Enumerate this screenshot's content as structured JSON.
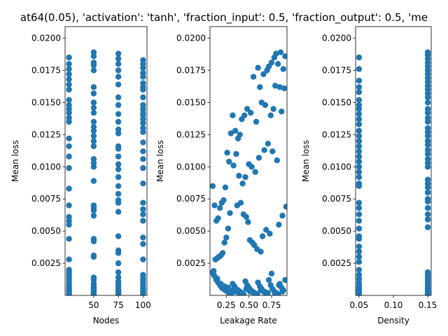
{
  "figure": {
    "title": "at64(0.05), 'activation': 'tanh', 'fraction_input': 0.5, 'fraction_output': 0.5, 'me",
    "marker_color": "#1f77b4"
  },
  "chart_data": [
    {
      "type": "scatter",
      "xlabel": "Nodes",
      "ylabel": "Mean loss",
      "xlim": [
        21,
        104
      ],
      "ylim": [
        0.0,
        0.0209
      ],
      "xticks": [
        50,
        75,
        100
      ],
      "xticklabels": [
        "50",
        "75",
        "100"
      ],
      "yticks": [
        0.0025,
        0.005,
        0.0075,
        0.01,
        0.0125,
        0.015,
        0.0175,
        0.02
      ],
      "yticklabels": [
        "0.0025",
        "0.0050",
        "0.0075",
        "0.0100",
        "0.0125",
        "0.0150",
        "0.0175",
        "0.0200"
      ],
      "series": [
        {
          "x": [
            25,
            25,
            25,
            25,
            25,
            25,
            25,
            25,
            25,
            25,
            25,
            25,
            25,
            25,
            25,
            25,
            25,
            25,
            25,
            25,
            25,
            25,
            25,
            25,
            25,
            25,
            25,
            25,
            25,
            25,
            25,
            25,
            25,
            25,
            25,
            25,
            25,
            25
          ],
          "y": [
            0.0185,
            0.018,
            0.0176,
            0.0172,
            0.0168,
            0.0164,
            0.016,
            0.0152,
            0.0148,
            0.0145,
            0.0142,
            0.0138,
            0.0135,
            0.0122,
            0.0116,
            0.0108,
            0.0099,
            0.0083,
            0.007,
            0.0061,
            0.0058,
            0.0055,
            0.0044,
            0.0028,
            0.002,
            0.0018,
            0.0016,
            0.0014,
            0.0012,
            0.001,
            0.0008,
            0.0007,
            0.0006,
            0.0005,
            0.0004,
            0.0003,
            0.0002,
            0.0001
          ]
        },
        {
          "x": [
            50,
            50,
            50,
            50,
            50,
            50,
            50,
            50,
            50,
            50,
            50,
            50,
            50,
            50,
            50,
            50,
            50,
            50,
            50,
            50,
            50,
            50,
            50,
            50,
            50,
            50,
            50,
            50,
            50,
            50,
            50,
            50,
            50,
            50,
            50,
            50,
            50,
            50,
            50,
            50
          ],
          "y": [
            0.0189,
            0.0186,
            0.0181,
            0.0179,
            0.0175,
            0.0162,
            0.0157,
            0.015,
            0.0146,
            0.0142,
            0.0135,
            0.0131,
            0.0128,
            0.0124,
            0.012,
            0.0116,
            0.0106,
            0.0103,
            0.01,
            0.0089,
            0.007,
            0.0068,
            0.0066,
            0.0062,
            0.0044,
            0.0042,
            0.0031,
            0.003,
            0.0014,
            0.0012,
            0.0009,
            0.0007,
            0.0006,
            0.0005,
            0.0004,
            0.0003,
            0.0002,
            0.0001,
            0.0001,
            0.0005
          ]
        },
        {
          "x": [
            75,
            75,
            75,
            75,
            75,
            75,
            75,
            75,
            75,
            75,
            75,
            75,
            75,
            75,
            75,
            75,
            75,
            75,
            75,
            75,
            75,
            75,
            75,
            75,
            75,
            75,
            75,
            75,
            75,
            75,
            75,
            75,
            75,
            75,
            75,
            75,
            75,
            75
          ],
          "y": [
            0.0188,
            0.0184,
            0.018,
            0.0175,
            0.017,
            0.0164,
            0.0154,
            0.0148,
            0.0141,
            0.0135,
            0.0129,
            0.0126,
            0.0116,
            0.0114,
            0.0108,
            0.0102,
            0.0098,
            0.0092,
            0.0085,
            0.0079,
            0.0074,
            0.0072,
            0.0065,
            0.0046,
            0.0035,
            0.0033,
            0.0025,
            0.0018,
            0.0014,
            0.0011,
            0.0009,
            0.0007,
            0.0005,
            0.0004,
            0.0003,
            0.0002,
            0.0001,
            0.0001
          ]
        },
        {
          "x": [
            100,
            100,
            100,
            100,
            100,
            100,
            100,
            100,
            100,
            100,
            100,
            100,
            100,
            100,
            100,
            100,
            100,
            100,
            100,
            100,
            100,
            100,
            100,
            100,
            100,
            100,
            100,
            100,
            100,
            100,
            100,
            100,
            100,
            100,
            100,
            100,
            100,
            100,
            100,
            100
          ],
          "y": [
            0.0183,
            0.018,
            0.0177,
            0.0173,
            0.017,
            0.0165,
            0.0162,
            0.016,
            0.0154,
            0.0148,
            0.0145,
            0.0142,
            0.014,
            0.0137,
            0.0134,
            0.013,
            0.0127,
            0.0119,
            0.0112,
            0.0106,
            0.0099,
            0.0087,
            0.0072,
            0.0067,
            0.0063,
            0.0058,
            0.0045,
            0.004,
            0.0028,
            0.0016,
            0.0014,
            0.0012,
            0.001,
            0.0008,
            0.0006,
            0.0005,
            0.0004,
            0.0003,
            0.0002,
            0.0001
          ]
        }
      ]
    },
    {
      "type": "scatter",
      "xlabel": "Leakage Rate",
      "ylabel": "Mean loss",
      "xlim": [
        0.07,
        0.92
      ],
      "ylim": [
        0.0,
        0.0209
      ],
      "xticks": [
        0.25,
        0.5,
        0.75
      ],
      "xticklabels": [
        "0.25",
        "0.50",
        "0.75"
      ],
      "yticks": [
        0.0025,
        0.005,
        0.0075,
        0.01,
        0.0125,
        0.015,
        0.0175,
        0.02
      ],
      "yticklabels": [
        "0.0025",
        "0.0050",
        "0.0075",
        "0.0100",
        "0.0125",
        "0.0150",
        "0.0175",
        "0.0200"
      ],
      "series": [
        {
          "x": [
            0.85,
            0.8,
            0.78,
            0.9,
            0.75,
            0.82,
            0.88,
            0.72,
            0.7,
            0.66,
            0.6,
            0.55,
            0.62,
            0.79,
            0.84,
            0.86,
            0.77,
            0.74,
            0.68,
            0.64,
            0.58,
            0.52,
            0.48,
            0.45,
            0.42,
            0.4,
            0.38,
            0.35,
            0.32,
            0.3,
            0.28,
            0.26,
            0.24,
            0.22,
            0.2,
            0.18,
            0.16,
            0.14,
            0.12,
            0.1,
            0.5,
            0.53,
            0.57,
            0.61,
            0.67,
            0.71,
            0.76,
            0.81,
            0.89,
            0.46,
            0.43,
            0.39,
            0.36,
            0.33,
            0.29,
            0.27,
            0.25,
            0.23,
            0.21,
            0.19,
            0.17,
            0.15,
            0.13,
            0.11,
            0.37,
            0.41,
            0.44,
            0.47,
            0.49,
            0.51,
            0.54,
            0.56,
            0.59,
            0.63,
            0.65,
            0.69,
            0.73,
            0.83,
            0.87,
            0.91
          ],
          "y": [
            0.0189,
            0.0188,
            0.0185,
            0.0186,
            0.0181,
            0.018,
            0.0176,
            0.0178,
            0.0175,
            0.0172,
            0.0177,
            0.017,
            0.0162,
            0.0163,
            0.0162,
            0.0143,
            0.0145,
            0.014,
            0.0148,
            0.015,
            0.0135,
            0.0142,
            0.0145,
            0.014,
            0.0137,
            0.0125,
            0.0122,
            0.0128,
            0.014,
            0.0126,
            0.0104,
            0.0111,
            0.0084,
            0.0074,
            0.0072,
            0.0068,
            0.006,
            0.0058,
            0.007,
            0.0085,
            0.0102,
            0.01,
            0.0096,
            0.0107,
            0.0113,
            0.0118,
            0.0112,
            0.0105,
            0.0161,
            0.0092,
            0.0087,
            0.0093,
            0.011,
            0.0101,
            0.0064,
            0.0052,
            0.0045,
            0.0041,
            0.0033,
            0.0031,
            0.003,
            0.0029,
            0.0028,
            0.0019,
            0.007,
            0.0072,
            0.0063,
            0.0061,
            0.0057,
            0.0043,
            0.0041,
            0.0039,
            0.0036,
            0.0034,
            0.0046,
            0.0051,
            0.0048,
            0.0055,
            0.0062,
            0.0069
          ]
        },
        {
          "x": [
            0.1,
            0.12,
            0.14,
            0.16,
            0.18,
            0.2,
            0.22,
            0.24,
            0.26,
            0.28,
            0.3,
            0.32,
            0.34,
            0.36,
            0.38,
            0.4,
            0.42,
            0.44,
            0.46,
            0.48,
            0.5,
            0.52,
            0.54,
            0.56,
            0.58,
            0.6,
            0.62,
            0.64,
            0.66,
            0.68,
            0.7,
            0.72,
            0.74,
            0.76,
            0.78,
            0.8,
            0.82,
            0.84,
            0.86,
            0.88,
            0.9,
            0.11,
            0.15,
            0.19,
            0.23,
            0.27,
            0.31,
            0.35,
            0.39,
            0.43,
            0.47,
            0.51,
            0.55,
            0.59,
            0.63,
            0.67,
            0.71,
            0.75,
            0.79,
            0.83,
            0.87
          ],
          "y": [
            0.0018,
            0.0015,
            0.0012,
            0.001,
            0.0008,
            0.0006,
            0.0005,
            0.0004,
            0.0003,
            0.0002,
            0.0001,
            0.0009,
            0.0007,
            0.0005,
            0.0004,
            0.0003,
            0.0002,
            0.0001,
            0.0011,
            0.0008,
            0.0006,
            0.0004,
            0.0003,
            0.0002,
            0.0001,
            0.001,
            0.0007,
            0.0005,
            0.0003,
            0.0002,
            0.0001,
            0.0012,
            0.0008,
            0.0005,
            0.0003,
            0.0002,
            0.0001,
            0.0009,
            0.0006,
            0.0004,
            0.0012,
            0.0016,
            0.0013,
            0.0009,
            0.0007,
            0.0006,
            0.0004,
            0.0003,
            0.0002,
            0.0001,
            0.0005,
            0.0003,
            0.0002,
            0.0001,
            0.0004,
            0.0003,
            0.0002,
            0.0017,
            0.0001,
            0.0008,
            0.0003
          ]
        }
      ]
    },
    {
      "type": "scatter",
      "xlabel": "Density",
      "ylabel": "Mean loss",
      "xlim": [
        0.045,
        0.155
      ],
      "ylim": [
        0.0,
        0.0209
      ],
      "xticks": [
        0.05,
        0.1,
        0.15
      ],
      "xticklabels": [
        "0.05",
        "0.10",
        "0.15"
      ],
      "yticks": [
        0.0025,
        0.005,
        0.0075,
        0.01,
        0.0125,
        0.015,
        0.0175,
        0.02
      ],
      "yticklabels": [
        "0.0025",
        "0.0050",
        "0.0075",
        "0.0100",
        "0.0125",
        "0.0150",
        "0.0175",
        "0.0200"
      ],
      "series": [
        {
          "x": [
            0.05,
            0.05,
            0.05,
            0.05,
            0.05,
            0.05,
            0.05,
            0.05,
            0.05,
            0.05,
            0.05,
            0.05,
            0.05,
            0.05,
            0.05,
            0.05,
            0.05,
            0.05,
            0.05,
            0.05,
            0.05,
            0.05,
            0.05,
            0.05,
            0.05,
            0.05,
            0.05,
            0.05,
            0.05,
            0.05,
            0.05,
            0.05,
            0.05,
            0.05,
            0.05,
            0.05,
            0.05,
            0.05,
            0.05,
            0.05,
            0.05,
            0.05,
            0.05,
            0.05,
            0.05
          ],
          "y": [
            0.0185,
            0.0176,
            0.0167,
            0.0162,
            0.0158,
            0.0152,
            0.0148,
            0.0145,
            0.0141,
            0.0137,
            0.0133,
            0.0128,
            0.0124,
            0.012,
            0.0116,
            0.0112,
            0.0108,
            0.0104,
            0.01,
            0.0096,
            0.0092,
            0.0087,
            0.0085,
            0.0072,
            0.0068,
            0.0063,
            0.0058,
            0.0052,
            0.0046,
            0.0044,
            0.0038,
            0.0034,
            0.003,
            0.0026,
            0.002,
            0.0016,
            0.0013,
            0.001,
            0.0008,
            0.0006,
            0.0005,
            0.0004,
            0.0003,
            0.0002,
            0.0001
          ]
        },
        {
          "x": [
            0.15,
            0.15,
            0.15,
            0.15,
            0.15,
            0.15,
            0.15,
            0.15,
            0.15,
            0.15,
            0.15,
            0.15,
            0.15,
            0.15,
            0.15,
            0.15,
            0.15,
            0.15,
            0.15,
            0.15,
            0.15,
            0.15,
            0.15,
            0.15,
            0.15,
            0.15,
            0.15,
            0.15,
            0.15,
            0.15,
            0.15,
            0.15,
            0.15,
            0.15,
            0.15,
            0.15,
            0.15,
            0.15,
            0.15,
            0.15,
            0.15,
            0.15,
            0.15,
            0.15,
            0.15,
            0.15,
            0.15,
            0.15,
            0.15,
            0.15
          ],
          "y": [
            0.0189,
            0.0187,
            0.0184,
            0.0181,
            0.0178,
            0.0175,
            0.0172,
            0.0169,
            0.0166,
            0.0163,
            0.016,
            0.0157,
            0.0154,
            0.015,
            0.0145,
            0.0142,
            0.0138,
            0.0135,
            0.013,
            0.0127,
            0.0124,
            0.012,
            0.0117,
            0.0113,
            0.011,
            0.0106,
            0.0103,
            0.01,
            0.009,
            0.0087,
            0.0084,
            0.008,
            0.0075,
            0.0073,
            0.0068,
            0.0063,
            0.0059,
            0.0053,
            0.0018,
            0.0016,
            0.0014,
            0.0012,
            0.001,
            0.0008,
            0.0006,
            0.0005,
            0.0004,
            0.0003,
            0.0002,
            0.0001
          ]
        }
      ]
    }
  ]
}
